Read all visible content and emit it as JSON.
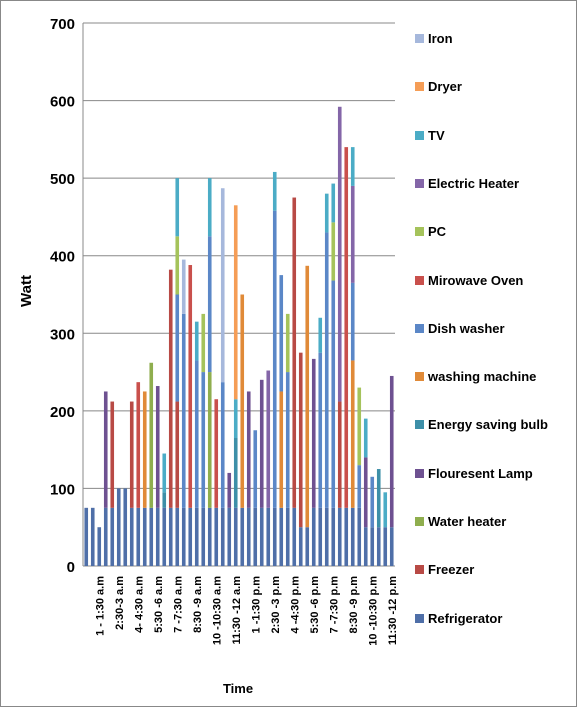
{
  "chart_data": {
    "type": "stacked_bar",
    "y_label": "Watt",
    "x_label": "Time",
    "categories": [
      null,
      null,
      "1 - 1:30 a.m",
      null,
      null,
      "2:30-3 a.m",
      null,
      null,
      "4- 4:30 a.m",
      null,
      null,
      "5:30 -6 a.m",
      null,
      null,
      "7 -7:30 a.m",
      null,
      null,
      "8:30 -9 a.m",
      null,
      null,
      "10 -10:30 a.m",
      null,
      null,
      "11:30 -12 a.m",
      null,
      null,
      "1 -1:30 p.m",
      null,
      null,
      "2:30 -3 p.m",
      null,
      null,
      "4 -4:30 p.m",
      null,
      null,
      "5:30 -6 p.m",
      null,
      null,
      "7 -7:30 p.m",
      null,
      null,
      "8:30 -9 p.m",
      null,
      null,
      "10 -10:30 p.m",
      null,
      null,
      "11:30 -12 p.m"
    ],
    "ylim": [
      0,
      700
    ],
    "yticks": [
      0,
      100,
      200,
      300,
      400,
      500,
      600,
      700
    ],
    "grid": true,
    "legend": "right",
    "series": [
      {
        "name": "Refrigerator",
        "color": "#4f6fa8",
        "values": [
          75,
          75,
          50,
          75,
          75,
          100,
          100,
          75,
          75,
          75,
          75,
          75,
          75,
          75,
          75,
          75,
          75,
          75,
          75,
          75,
          75,
          75,
          75,
          75,
          75,
          75,
          75,
          75,
          75,
          75,
          75,
          75,
          75,
          50,
          50,
          75,
          75,
          75,
          75,
          75,
          75,
          75,
          75,
          50,
          50,
          50,
          50,
          50
        ]
      },
      {
        "name": "Freezer",
        "color": "#b84a45",
        "values": [
          0,
          0,
          0,
          0,
          137,
          0,
          0,
          137,
          0,
          0,
          0,
          0,
          0,
          307,
          137,
          0,
          0,
          0,
          0,
          0,
          0,
          0,
          0,
          0,
          0,
          0,
          0,
          0,
          0,
          0,
          0,
          0,
          400,
          225,
          0,
          0,
          0,
          0,
          0,
          137,
          0,
          0,
          0,
          0,
          0,
          0,
          0,
          0
        ]
      },
      {
        "name": "Water heater",
        "color": "#8fae4e",
        "values": [
          0,
          0,
          0,
          0,
          0,
          0,
          0,
          0,
          0,
          0,
          187,
          0,
          0,
          0,
          0,
          0,
          0,
          0,
          0,
          175,
          0,
          0,
          0,
          0,
          0,
          0,
          0,
          0,
          0,
          0,
          0,
          0,
          0,
          0,
          0,
          0,
          0,
          0,
          0,
          0,
          0,
          0,
          0,
          0,
          0,
          0,
          0,
          0
        ]
      },
      {
        "name": "Flouresent Lamp",
        "color": "#6e5191",
        "values": [
          0,
          0,
          0,
          150,
          0,
          0,
          0,
          0,
          0,
          0,
          0,
          157,
          0,
          0,
          0,
          0,
          0,
          0,
          0,
          0,
          0,
          0,
          45,
          0,
          0,
          150,
          0,
          165,
          0,
          0,
          0,
          0,
          0,
          0,
          0,
          192,
          0,
          0,
          0,
          0,
          0,
          0,
          0,
          90,
          0,
          0,
          0,
          195
        ]
      },
      {
        "name": "Energy saving bulb",
        "color": "#3d8fa8",
        "values": [
          0,
          0,
          0,
          0,
          0,
          0,
          0,
          0,
          0,
          0,
          0,
          0,
          20,
          0,
          0,
          0,
          0,
          0,
          0,
          0,
          0,
          0,
          0,
          90,
          0,
          0,
          0,
          0,
          0,
          0,
          0,
          0,
          0,
          0,
          0,
          0,
          0,
          0,
          0,
          0,
          0,
          0,
          0,
          0,
          0,
          75,
          0,
          0
        ]
      },
      {
        "name": "washing machine",
        "color": "#e08a38",
        "values": [
          0,
          0,
          0,
          0,
          0,
          0,
          0,
          0,
          0,
          150,
          0,
          0,
          0,
          0,
          0,
          0,
          0,
          0,
          0,
          0,
          0,
          0,
          0,
          0,
          275,
          0,
          0,
          0,
          0,
          0,
          150,
          0,
          0,
          0,
          337,
          0,
          0,
          0,
          0,
          0,
          0,
          190,
          0,
          0,
          0,
          0,
          0,
          0
        ]
      },
      {
        "name": "Dish washer",
        "color": "#5b87c7",
        "values": [
          0,
          0,
          0,
          0,
          0,
          0,
          0,
          0,
          0,
          0,
          0,
          0,
          0,
          0,
          138,
          250,
          0,
          190,
          175,
          175,
          0,
          162,
          0,
          0,
          0,
          0,
          100,
          0,
          0,
          383,
          150,
          175,
          0,
          0,
          0,
          0,
          200,
          355,
          293,
          0,
          0,
          100,
          55,
          0,
          65,
          0,
          0,
          0
        ]
      },
      {
        "name": "Mirowave Oven",
        "color": "#c9504c",
        "values": [
          0,
          0,
          0,
          0,
          0,
          0,
          0,
          0,
          162,
          0,
          0,
          0,
          0,
          0,
          0,
          0,
          313,
          0,
          0,
          0,
          140,
          0,
          0,
          0,
          0,
          0,
          0,
          0,
          0,
          0,
          0,
          0,
          0,
          0,
          0,
          0,
          0,
          0,
          0,
          0,
          465,
          0,
          0,
          0,
          0,
          0,
          0,
          0
        ]
      },
      {
        "name": "PC",
        "color": "#a5c35b",
        "values": [
          0,
          0,
          0,
          0,
          0,
          0,
          0,
          0,
          0,
          0,
          0,
          0,
          0,
          0,
          75,
          0,
          0,
          0,
          75,
          0,
          0,
          0,
          0,
          0,
          0,
          0,
          0,
          0,
          0,
          0,
          0,
          75,
          0,
          0,
          0,
          0,
          0,
          0,
          75,
          0,
          0,
          0,
          100,
          0,
          0,
          0,
          0,
          0
        ]
      },
      {
        "name": "Electric Heater",
        "color": "#8466a8",
        "values": [
          0,
          0,
          0,
          0,
          0,
          0,
          0,
          0,
          0,
          0,
          0,
          0,
          0,
          0,
          0,
          0,
          0,
          0,
          0,
          0,
          0,
          0,
          0,
          0,
          0,
          0,
          0,
          0,
          177,
          0,
          0,
          0,
          0,
          0,
          0,
          0,
          0,
          0,
          0,
          380,
          0,
          125,
          0,
          0,
          0,
          0,
          0,
          0
        ]
      },
      {
        "name": "TV",
        "color": "#4bacc6",
        "values": [
          0,
          0,
          0,
          0,
          0,
          0,
          0,
          0,
          0,
          0,
          0,
          0,
          50,
          0,
          75,
          0,
          0,
          50,
          0,
          75,
          0,
          0,
          0,
          50,
          0,
          0,
          0,
          0,
          0,
          50,
          0,
          0,
          0,
          0,
          0,
          0,
          45,
          50,
          50,
          0,
          0,
          50,
          0,
          50,
          0,
          0,
          45,
          0
        ]
      },
      {
        "name": "Dryer",
        "color": "#f59d56",
        "values": [
          0,
          0,
          0,
          0,
          0,
          0,
          0,
          0,
          0,
          0,
          0,
          0,
          0,
          0,
          0,
          0,
          0,
          0,
          0,
          0,
          0,
          0,
          0,
          250,
          0,
          0,
          0,
          0,
          0,
          0,
          0,
          0,
          0,
          0,
          0,
          0,
          0,
          0,
          0,
          0,
          0,
          0,
          0,
          0,
          0,
          0,
          0,
          0
        ]
      },
      {
        "name": "Iron",
        "color": "#a6b8dc",
        "values": [
          0,
          0,
          0,
          0,
          0,
          0,
          0,
          0,
          0,
          0,
          0,
          0,
          0,
          0,
          0,
          70,
          0,
          0,
          0,
          0,
          0,
          250,
          0,
          0,
          0,
          0,
          0,
          0,
          0,
          0,
          0,
          0,
          0,
          0,
          0,
          0,
          0,
          0,
          0,
          0,
          0,
          0,
          0,
          0,
          0,
          0,
          0,
          0
        ]
      }
    ]
  }
}
